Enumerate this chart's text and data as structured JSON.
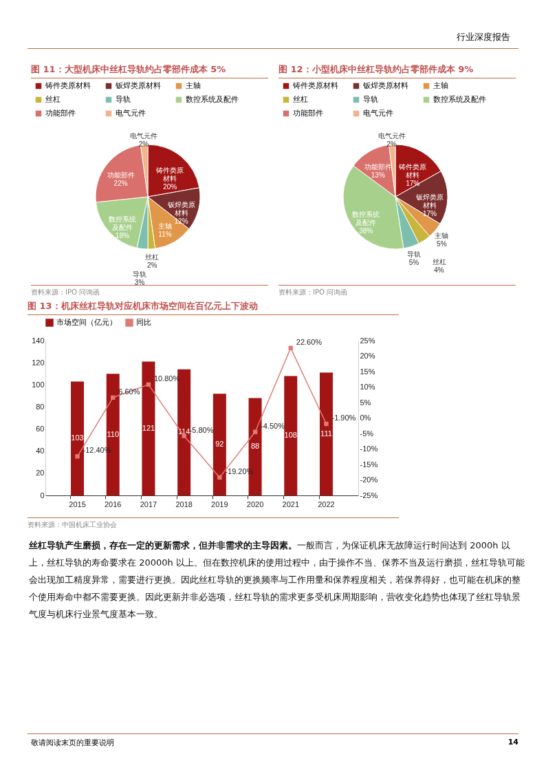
{
  "chart_data": [
    {
      "type": "pie",
      "title": "图 11：大型机床中丝杠导轨约占零部件成本 5%",
      "categories": [
        "铸件类原材料",
        "钣焊类原材料",
        "主轴",
        "丝杠",
        "导轨",
        "数控系统及配件",
        "功能部件",
        "电气元件"
      ],
      "values": [
        20,
        12,
        11,
        2,
        3,
        18,
        22,
        2
      ],
      "value_labels": [
        "20%",
        "12%",
        "11%",
        "2%",
        "3%",
        "18%",
        "22%",
        "2%"
      ],
      "colors": [
        "#a31515",
        "#7b2e2e",
        "#e0974a",
        "#c9b53a",
        "#7dbfae",
        "#a8d08d",
        "#d9706b",
        "#f2b48a"
      ],
      "legend": "top",
      "annotations": [
        "行业深度报告",
        "资料来源：IPO 问询函"
      ]
    },
    {
      "type": "pie",
      "title": "图 12：小型机床中丝杠导轨约占零部件成本 9%",
      "categories": [
        "铸件类原材料",
        "钣焊类原材料",
        "主轴",
        "丝杠",
        "导轨",
        "数控系统及配件",
        "功能部件",
        "电气元件"
      ],
      "values": [
        17,
        17,
        5,
        4,
        5,
        38,
        13,
        2
      ],
      "value_labels": [
        "17%",
        "17%",
        "5%",
        "4%",
        "5%",
        "38%",
        "13%",
        "2%"
      ],
      "colors": [
        "#a31515",
        "#7b2e2e",
        "#e0974a",
        "#c9b53a",
        "#7dbfae",
        "#a8d08d",
        "#d9706b",
        "#f2b48a"
      ],
      "legend": "top",
      "annotations": [
        "资料来源：IPO 问询函"
      ]
    },
    {
      "type": "bar",
      "title": "图 13：机床丝杠导轨对应机床市场空间在百亿元上下波动",
      "categories": [
        "2015",
        "2016",
        "2017",
        "2018",
        "2019",
        "2020",
        "2021",
        "2022"
      ],
      "series": [
        {
          "name": "市场空间（亿元）",
          "color": "#a31515",
          "values": [
            103,
            110,
            121,
            114,
            92,
            88,
            108,
            111
          ],
          "value_labels": [
            "103",
            "110",
            "121",
            "114",
            "92",
            "88",
            "108",
            "111"
          ]
        },
        {
          "name": "同比",
          "type": "line",
          "axis": "y2",
          "color": "#e07b74",
          "values": [
            -12.4,
            6.6,
            10.8,
            -5.8,
            -19.2,
            -4.5,
            22.6,
            -1.9
          ],
          "value_labels": [
            "-12.40%",
            "6.60%",
            "10.80%",
            "-5.80%",
            "-19.20%",
            "-4.50%",
            "22.60%",
            "-1.90%"
          ]
        }
      ],
      "ylim": [
        0,
        140
      ],
      "yticks": [
        0,
        20,
        40,
        60,
        80,
        100,
        120,
        140
      ],
      "y2lim": [
        -25,
        25
      ],
      "y2ticks": [
        {
          "value": -25,
          "label": "-25%"
        },
        {
          "value": -20,
          "label": "-20%"
        },
        {
          "value": -15,
          "label": "-15%"
        },
        {
          "value": -10,
          "label": "-10%"
        },
        {
          "value": -5,
          "label": "-5%"
        },
        {
          "value": 0,
          "label": "0%"
        },
        {
          "value": 5,
          "label": "5%"
        },
        {
          "value": 10,
          "label": "10%"
        },
        {
          "value": 15,
          "label": "15%"
        },
        {
          "value": 20,
          "label": "20%"
        },
        {
          "value": 25,
          "label": "25%"
        }
      ],
      "marker": "square",
      "legend": "top",
      "grid": false,
      "annotations": [
        "资料来源：中国机床工业协会",
        "丝杠导轨产生磨损，存在一定的更新需求，但并非需求的主导因素。",
        "一般而言，为保证机床无故障运行时间达到 2000h 以上，丝杠导轨的寿命要求在 20000h 以上。但在数控机床的使用过程中，由于操作不当、保养不当及运行磨损，丝杠导轨可能会出现加工精度异常，需要进行更换。因此丝杠导轨的更换频率与工作用量和保养程度相关，若保养得好，也可能在机床的整个使用寿命中都不需要更换。因此更新并非必选项，丝杠导轨的需求更多受机床周期影响，营收变化趋势也体现了丝杠导轨景气度与机床行业景气度基本一致。",
        "敬请阅读末页的重要说明",
        "14"
      ]
    }
  ]
}
